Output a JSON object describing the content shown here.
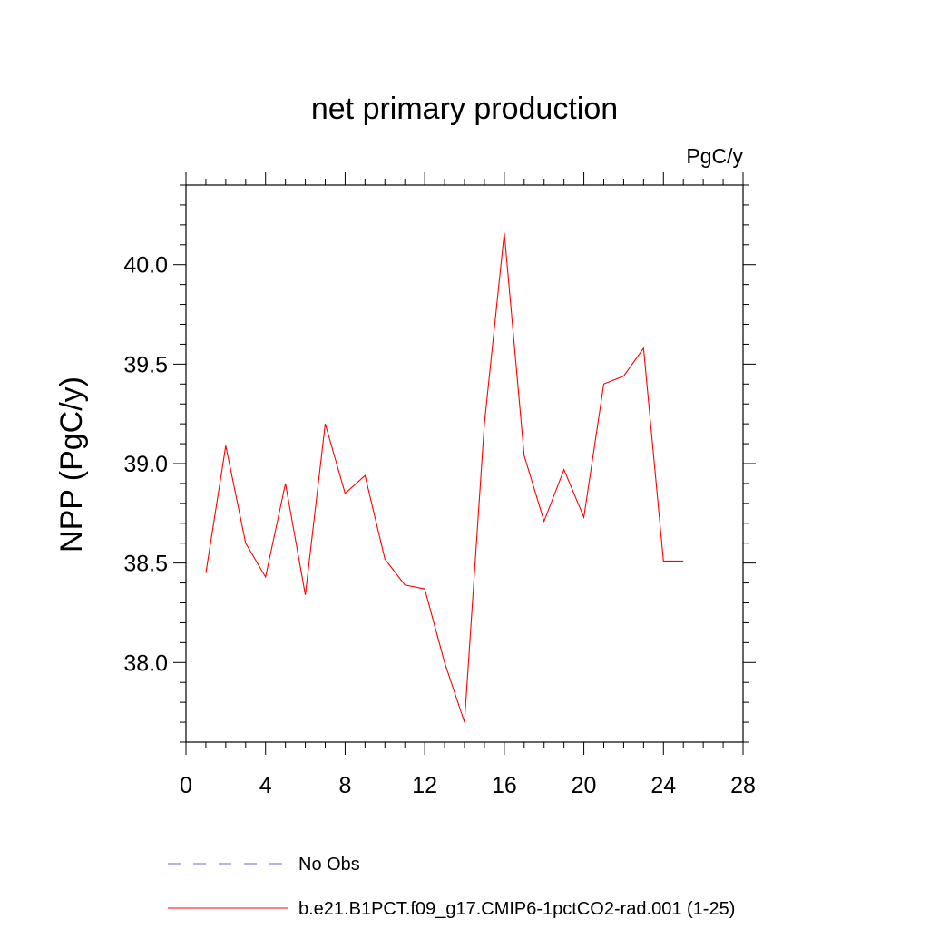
{
  "chart_data": {
    "type": "line",
    "title": "net primary production",
    "units_label": "PgC/y",
    "ylabel": "NPP  (PgC/y)",
    "xlabel": "",
    "xlim": [
      0,
      28
    ],
    "ylim": [
      37.6,
      40.4
    ],
    "x_ticks": [
      "0",
      "4",
      "8",
      "12",
      "16",
      "20",
      "24",
      "28"
    ],
    "y_ticks": [
      "38.0",
      "38.5",
      "39.0",
      "39.5",
      "40.0"
    ],
    "grid": false,
    "legend_position": "bottom",
    "series": [
      {
        "name": "b.e21.B1PCT.f09_g17.CMIP6-1pctCO2-rad.001 (1-25)",
        "color": "#ff0000",
        "style": "solid",
        "x": [
          1,
          2,
          3,
          4,
          5,
          6,
          7,
          8,
          9,
          10,
          11,
          12,
          13,
          14,
          15,
          16,
          17,
          18,
          19,
          20,
          21,
          22,
          23,
          24,
          25
        ],
        "values": [
          38.45,
          39.09,
          38.6,
          38.43,
          38.9,
          38.34,
          39.2,
          38.85,
          38.94,
          38.52,
          38.39,
          38.37,
          38.0,
          37.7,
          39.2,
          40.16,
          39.04,
          38.71,
          38.97,
          38.73,
          39.4,
          39.44,
          39.58,
          38.51,
          38.51
        ]
      },
      {
        "name": "No Obs",
        "color": "#6a6acd",
        "style": "dashed",
        "x": [],
        "values": []
      }
    ]
  }
}
